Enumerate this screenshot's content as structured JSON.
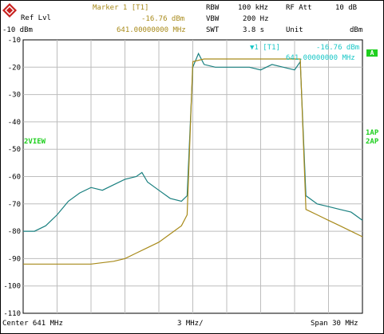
{
  "header": {
    "ref_lvl_label": "Ref Lvl",
    "ref_lvl_value": "-10 dBm",
    "marker_title": "Marker 1 [T1]",
    "marker_level": "-16.76 dBm",
    "marker_freq": "641.00000000 MHz",
    "rbw_label": "RBW",
    "rbw_value": "100 kHz",
    "vbw_label": "VBW",
    "vbw_value": "200 Hz",
    "swt_label": "SWT",
    "swt_value": "3.8 s",
    "rf_att_label": "RF Att",
    "rf_att_value": "10 dB",
    "unit_label": "Unit",
    "unit_value": "dBm"
  },
  "marker_box": {
    "title": "▼1 [T1]",
    "level": "-16.76 dBm",
    "freq": "641.00000000 MHz"
  },
  "side": {
    "left_label": "2VIEW",
    "right_a": "A",
    "right_1": "1AP",
    "right_2": "2AP"
  },
  "footer": {
    "center": "Center 641 MHz",
    "per_div": "3 MHz/",
    "span": "Span 30 MHz"
  },
  "colors": {
    "trace1": "#1a8080",
    "trace2": "#a88a1a",
    "marker_text": "#19c7c7",
    "status_green": "#1fcf1f"
  },
  "chart_data": {
    "type": "line",
    "ylim": [
      -110,
      -10
    ],
    "xlim": [
      626,
      656
    ],
    "y_ticks": [
      "-10",
      "-20",
      "-30",
      "-40",
      "-50",
      "-60",
      "-70",
      "-80",
      "-90",
      "-100",
      "-110"
    ],
    "grid": true,
    "series": [
      {
        "color": "#1a8080",
        "x": [
          626,
          627,
          628,
          629,
          630,
          631,
          632,
          633,
          634,
          635,
          636,
          636.5,
          637,
          638,
          639,
          640,
          640.5,
          641,
          641.5,
          642,
          643,
          644,
          645,
          646,
          647,
          648,
          649,
          650,
          650.5,
          651,
          652,
          653,
          654,
          655,
          656
        ],
        "y": [
          -80,
          -80,
          -78,
          -74,
          -69,
          -66,
          -64,
          -65,
          -63,
          -61,
          -60,
          -58.5,
          -62,
          -65,
          -68,
          -69,
          -67,
          -20,
          -15,
          -19,
          -20,
          -20,
          -20,
          -20,
          -21,
          -19,
          -20,
          -21,
          -18,
          -67,
          -70,
          -71,
          -72,
          -73,
          -76
        ]
      },
      {
        "color": "#a88a1a",
        "x": [
          626,
          628,
          630,
          632,
          634,
          635,
          636,
          637,
          638,
          639,
          640,
          640.5,
          641,
          642,
          643,
          644,
          645,
          646,
          647,
          648,
          649,
          650,
          650.5,
          651,
          652,
          653,
          654,
          655,
          656
        ],
        "y": [
          -92,
          -92,
          -92,
          -92,
          -91,
          -90,
          -88,
          -86,
          -84,
          -81,
          -78,
          -74,
          -18,
          -17,
          -17,
          -17,
          -17,
          -17,
          -17,
          -17,
          -17,
          -17,
          -17,
          -72,
          -74,
          -76,
          -78,
          -80,
          -82
        ]
      }
    ]
  }
}
